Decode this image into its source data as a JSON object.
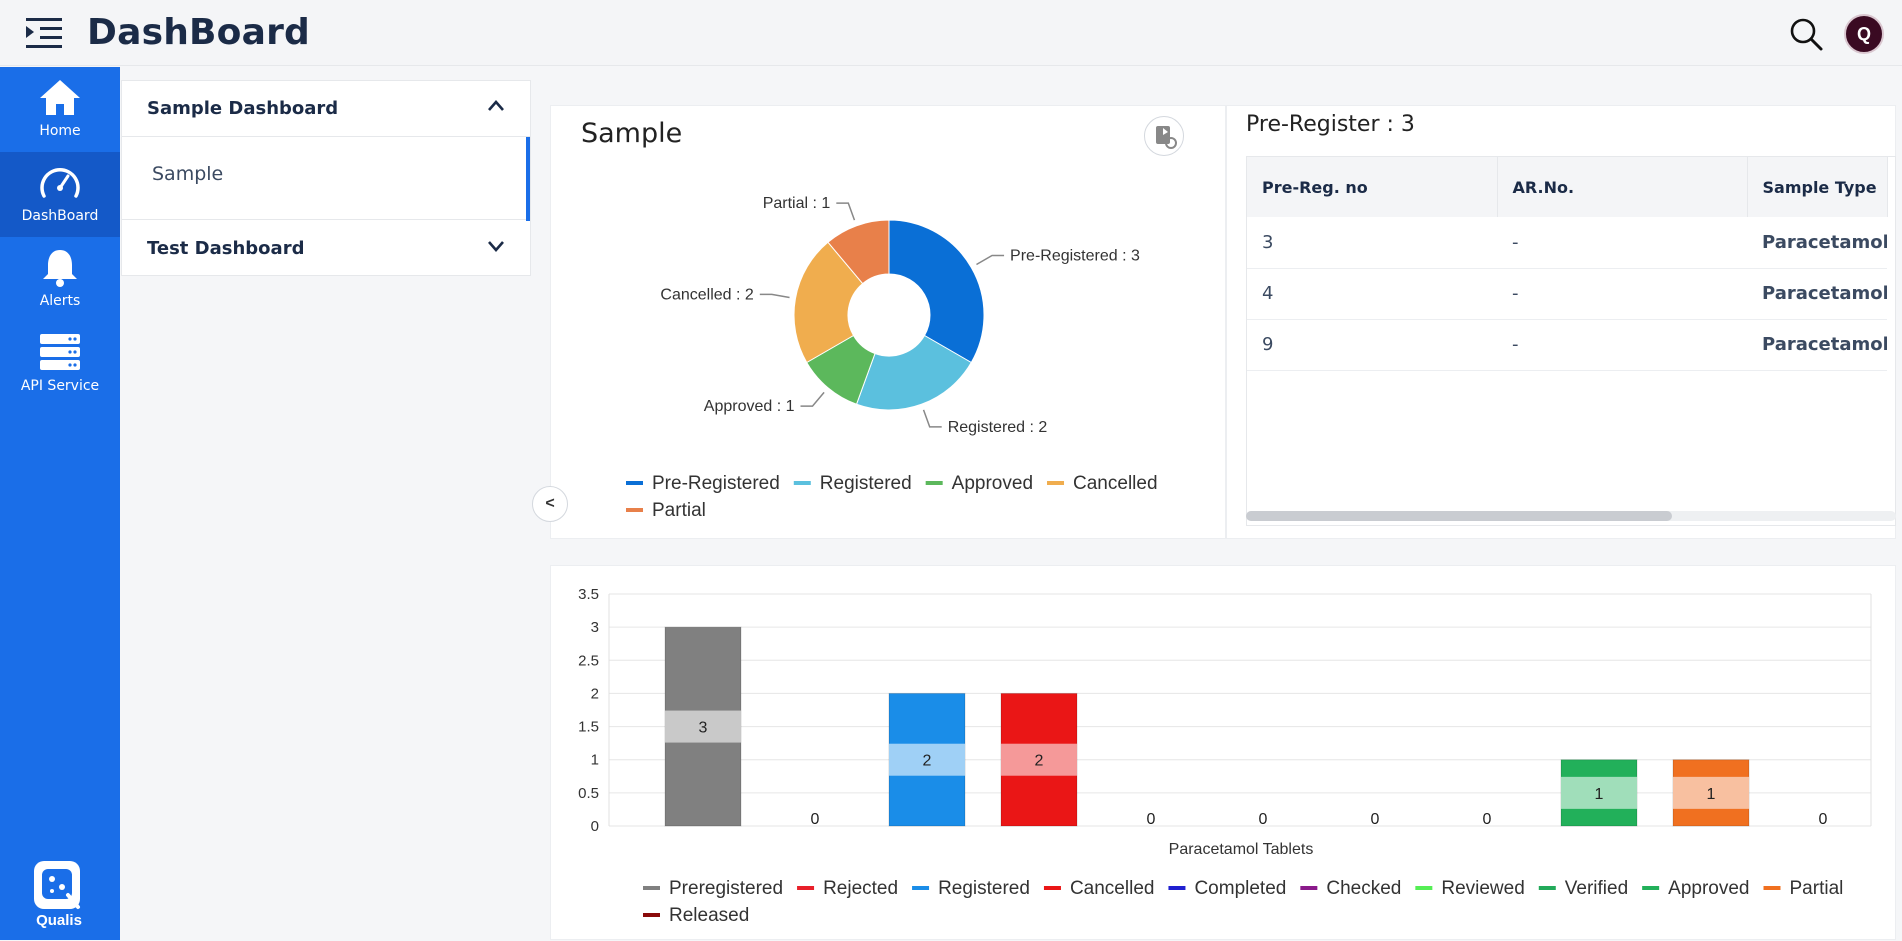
{
  "header": {
    "title": "DashBoard",
    "avatar_initial": "Q"
  },
  "rail": {
    "items": [
      {
        "label": "Home",
        "icon": "home-icon"
      },
      {
        "label": "DashBoard",
        "icon": "gauge-icon",
        "active": true
      },
      {
        "label": "Alerts",
        "icon": "bell-icon"
      },
      {
        "label": "API Service",
        "icon": "server-icon"
      }
    ],
    "logo_text": "Qualis"
  },
  "subnav": {
    "sections": [
      {
        "title": "Sample Dashboard",
        "expanded": true,
        "items": [
          "Sample"
        ]
      },
      {
        "title": "Test Dashboard",
        "expanded": false,
        "items": []
      }
    ]
  },
  "collapse_label": "<",
  "pie_panel": {
    "title": "Sample"
  },
  "table_panel": {
    "title": "Pre-Register : 3",
    "columns": [
      "Pre-Reg. no",
      "AR.No.",
      "Sample Type"
    ],
    "rows": [
      [
        "3",
        "-",
        "Paracetamol"
      ],
      [
        "4",
        "-",
        "Paracetamol"
      ],
      [
        "9",
        "-",
        "Paracetamol"
      ]
    ]
  },
  "chart_data": [
    {
      "type": "pie",
      "title": "Sample",
      "donut": true,
      "slices": [
        {
          "label": "Pre-Registered",
          "value": 3,
          "color": "#0a6fd6"
        },
        {
          "label": "Registered",
          "value": 2,
          "color": "#5bc0de"
        },
        {
          "label": "Approved",
          "value": 1,
          "color": "#5cb85c"
        },
        {
          "label": "Cancelled",
          "value": 2,
          "color": "#f0ad4e"
        },
        {
          "label": "Partial",
          "value": 1,
          "color": "#e8804a"
        }
      ],
      "legend_position": "bottom"
    },
    {
      "type": "bar",
      "category": "Paracetamol Tablets",
      "xlabel": "Paracetamol Tablets",
      "ylim": [
        0,
        3.5
      ],
      "yticks": [
        "0",
        "0.5",
        "1",
        "1.5",
        "2",
        "2.5",
        "3",
        "3.5"
      ],
      "grid": true,
      "series": [
        {
          "name": "Preregistered",
          "value": 3,
          "color": "#808080",
          "label_bg": "#cccccc"
        },
        {
          "name": "Rejected",
          "value": 0,
          "color": "#e8202a",
          "label_bg": "#f5a0a0"
        },
        {
          "name": "Registered",
          "value": 2,
          "color": "#1a8de8",
          "label_bg": "#a6d4f7"
        },
        {
          "name": "Cancelled",
          "value": 2,
          "color": "#ea1616",
          "label_bg": "#f5a0a0"
        },
        {
          "name": "Completed",
          "value": 0,
          "color": "#2020d0",
          "label_bg": "#a0a0f0"
        },
        {
          "name": "Checked",
          "value": 0,
          "color": "#8a1a8a",
          "label_bg": "#d0a0d0"
        },
        {
          "name": "Reviewed",
          "value": 0,
          "color": "#55ee55",
          "label_bg": "#b8f5b8"
        },
        {
          "name": "Verified",
          "value": 0,
          "color": "#22aa5a",
          "label_bg": "#a8e0c0"
        },
        {
          "name": "Approved",
          "value": 1,
          "color": "#22b05a",
          "label_bg": "#a8e0c0"
        },
        {
          "name": "Partial",
          "value": 1,
          "color": "#f07020",
          "label_bg": "#f8c4a8"
        },
        {
          "name": "Released",
          "value": 0,
          "color": "#8a0a0a",
          "label_bg": "#d0a0a0"
        }
      ],
      "legend_position": "bottom"
    }
  ]
}
